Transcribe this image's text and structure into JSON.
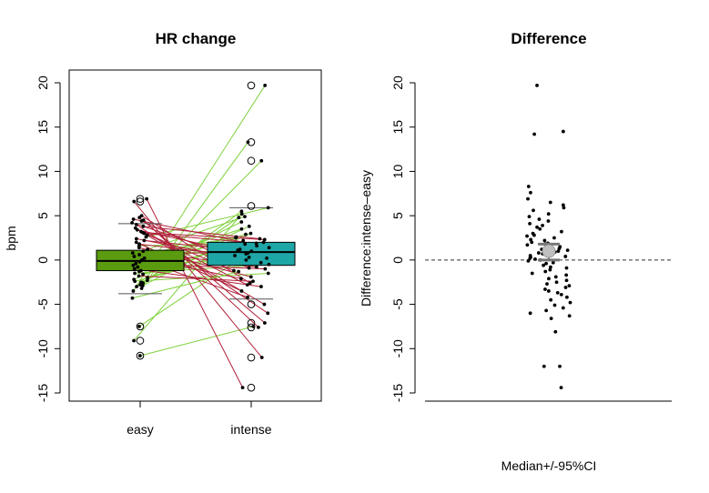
{
  "chart_data": [
    {
      "type": "box",
      "title": "HR change",
      "ylabel": "bpm",
      "xlabel": "",
      "categories": [
        "easy",
        "intense"
      ],
      "ylim": [
        -15,
        20
      ],
      "yticks": [
        -15,
        -10,
        -5,
        0,
        5,
        10,
        15,
        20
      ],
      "box_colors": [
        "#5a9b10",
        "#1fa6a6"
      ],
      "line_colors": {
        "increase": "#7ed13a",
        "decrease": "#b0203a"
      },
      "box_stats": [
        {
          "category": "easy",
          "whisker_low": -3.8,
          "q1": -1.2,
          "median": -0.1,
          "q3": 1.1,
          "whisker_high": 4.1
        },
        {
          "category": "intense",
          "whisker_low": -4.4,
          "q1": -0.6,
          "median": 0.9,
          "q3": 2.0,
          "whisker_high": 5.9
        }
      ],
      "outliers": {
        "easy": [
          6.9,
          6.6,
          -7.5,
          -9.1,
          -10.8
        ],
        "intense": [
          19.7,
          13.3,
          11.2,
          6.1,
          -5.0,
          -7.1,
          -7.6,
          -11.0,
          -14.4
        ]
      },
      "pairs": [
        [
          -10.8,
          -7.5
        ],
        [
          -9.1,
          5.2
        ],
        [
          -7.5,
          1.0
        ],
        [
          -3.5,
          19.7
        ],
        [
          -3.2,
          13.3
        ],
        [
          -3.0,
          11.2
        ],
        [
          -2.9,
          2.5
        ],
        [
          -2.8,
          5.5
        ],
        [
          -2.6,
          4.8
        ],
        [
          -2.5,
          3.0
        ],
        [
          -2.4,
          0.5
        ],
        [
          -2.3,
          -1.5
        ],
        [
          -2.2,
          3.8
        ],
        [
          -2.0,
          1.2
        ],
        [
          -1.8,
          -2.4
        ],
        [
          -1.6,
          2.2
        ],
        [
          -1.5,
          -0.5
        ],
        [
          -1.3,
          4.3
        ],
        [
          -1.2,
          1.8
        ],
        [
          -1.0,
          -3.0
        ],
        [
          -0.8,
          2.9
        ],
        [
          -0.6,
          0.2
        ],
        [
          -0.4,
          -1.0
        ],
        [
          -0.2,
          3.5
        ],
        [
          0.0,
          -4.2
        ],
        [
          0.2,
          1.6
        ],
        [
          0.4,
          -2.1
        ],
        [
          0.6,
          2.6
        ],
        [
          0.8,
          0.8
        ],
        [
          1.0,
          -0.8
        ],
        [
          1.2,
          4.9
        ],
        [
          1.4,
          -1.9
        ],
        [
          1.6,
          2.0
        ],
        [
          1.8,
          0.3
        ],
        [
          2.0,
          -3.5
        ],
        [
          2.2,
          1.1
        ],
        [
          2.4,
          -0.3
        ],
        [
          2.6,
          5.9
        ],
        [
          2.8,
          -5.0
        ],
        [
          3.0,
          1.9
        ],
        [
          3.2,
          -1.2
        ],
        [
          3.4,
          0.7
        ],
        [
          3.6,
          -2.8
        ],
        [
          3.8,
          2.4
        ],
        [
          4.0,
          -6.0
        ],
        [
          4.2,
          0.0
        ],
        [
          4.4,
          -0.9
        ],
        [
          4.6,
          1.4
        ],
        [
          4.8,
          -7.1
        ],
        [
          5.0,
          -2.6
        ],
        [
          6.6,
          -11.0
        ],
        [
          6.9,
          -14.4
        ],
        [
          -4.3,
          -1.3
        ],
        [
          4.5,
          -7.6
        ],
        [
          3.1,
          2.3
        ]
      ]
    },
    {
      "type": "scatter",
      "title": "Difference",
      "ylabel": "Difference:intense–easy",
      "xlabel": "Median+/-95%CI",
      "ylim": [
        -15,
        20
      ],
      "yticks": [
        -15,
        -10,
        -5,
        0,
        5,
        10,
        15,
        20
      ],
      "reference_line": 0,
      "median": 1.0,
      "ci": [
        0.0,
        1.8
      ],
      "points": [
        19.7,
        14.5,
        14.2,
        8.3,
        7.6,
        6.9,
        6.5,
        6.2,
        5.9,
        5.6,
        5.2,
        4.9,
        4.6,
        4.4,
        4.1,
        3.9,
        3.7,
        3.5,
        3.2,
        3.0,
        2.8,
        2.7,
        2.5,
        2.3,
        2.2,
        2.0,
        1.9,
        1.8,
        1.7,
        1.5,
        1.4,
        1.3,
        1.2,
        1.1,
        1.0,
        0.9,
        0.8,
        0.7,
        0.5,
        0.4,
        0.3,
        0.2,
        0.1,
        0.0,
        -0.1,
        -0.3,
        -0.4,
        -0.6,
        -0.8,
        -0.9,
        -1.1,
        -1.3,
        -1.5,
        -1.7,
        -1.9,
        -2.1,
        -2.3,
        -2.5,
        -2.7,
        -2.9,
        -3.1,
        -3.3,
        -3.5,
        -3.7,
        -3.9,
        -4.2,
        -4.5,
        -4.8,
        -5.1,
        -5.4,
        -5.7,
        -6.0,
        -6.3,
        -6.6,
        -8.1,
        -12.0,
        -12.0,
        -14.4
      ]
    }
  ]
}
